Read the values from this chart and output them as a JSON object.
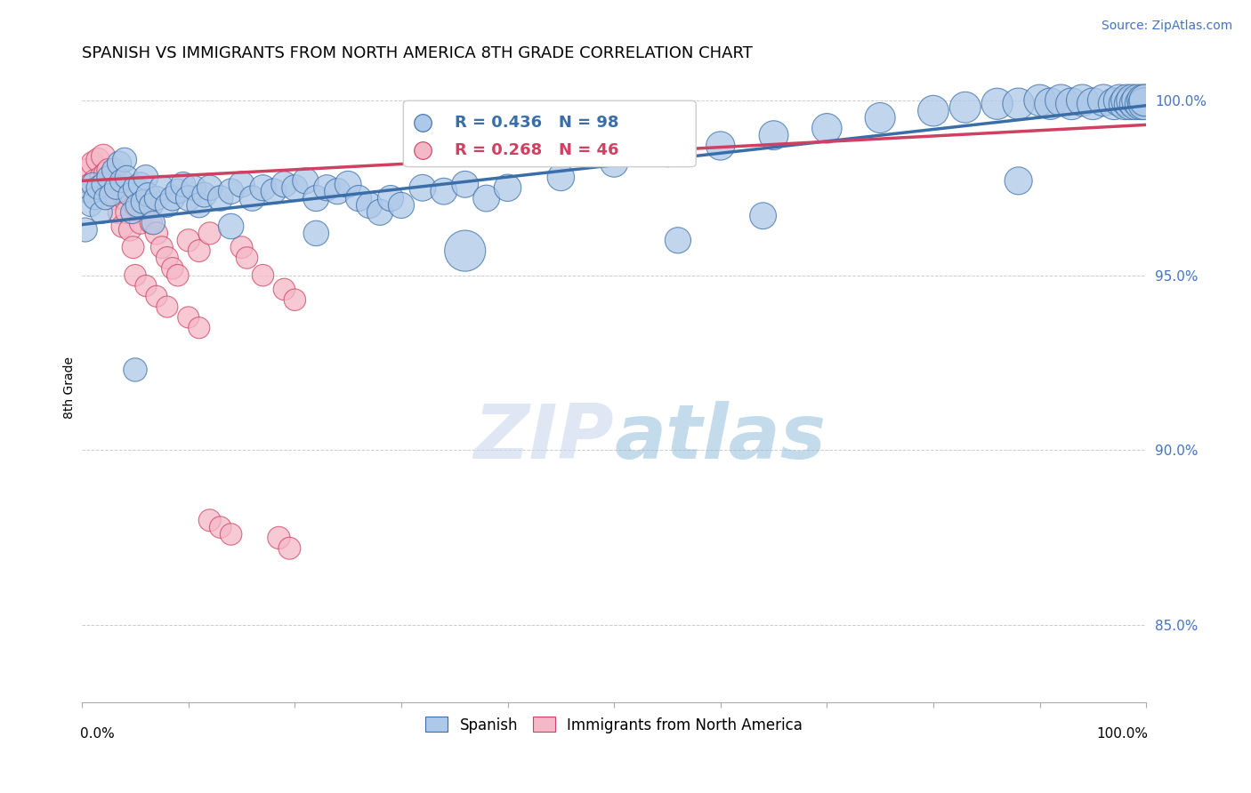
{
  "title": "SPANISH VS IMMIGRANTS FROM NORTH AMERICA 8TH GRADE CORRELATION CHART",
  "source": "Source: ZipAtlas.com",
  "ylabel": "8th Grade",
  "ylabel_ticks": [
    "85.0%",
    "90.0%",
    "95.0%",
    "100.0%"
  ],
  "ylabel_tick_vals": [
    0.85,
    0.9,
    0.95,
    1.0
  ],
  "xlim": [
    0.0,
    1.0
  ],
  "ylim": [
    0.828,
    1.008
  ],
  "blue_R": 0.436,
  "blue_N": 98,
  "pink_R": 0.268,
  "pink_N": 46,
  "blue_color": "#adc8e8",
  "blue_line_color": "#3a6ea8",
  "pink_color": "#f5b8c8",
  "pink_line_color": "#d04060",
  "legend_label_blue": "Spanish",
  "legend_label_pink": "Immigrants from North America",
  "watermark_zip": "ZIP",
  "watermark_atlas": "atlas",
  "blue_scatter_x": [
    0.005,
    0.008,
    0.01,
    0.012,
    0.015,
    0.018,
    0.02,
    0.022,
    0.025,
    0.027,
    0.03,
    0.032,
    0.035,
    0.037,
    0.04,
    0.042,
    0.045,
    0.047,
    0.05,
    0.052,
    0.055,
    0.057,
    0.06,
    0.062,
    0.065,
    0.067,
    0.07,
    0.075,
    0.08,
    0.085,
    0.09,
    0.095,
    0.1,
    0.105,
    0.11,
    0.115,
    0.12,
    0.13,
    0.14,
    0.15,
    0.16,
    0.17,
    0.18,
    0.19,
    0.2,
    0.21,
    0.22,
    0.23,
    0.24,
    0.25,
    0.26,
    0.27,
    0.28,
    0.29,
    0.3,
    0.32,
    0.34,
    0.36,
    0.38,
    0.4,
    0.45,
    0.5,
    0.55,
    0.6,
    0.65,
    0.7,
    0.75,
    0.8,
    0.83,
    0.86,
    0.88,
    0.9,
    0.91,
    0.92,
    0.93,
    0.94,
    0.95,
    0.96,
    0.97,
    0.975,
    0.98,
    0.982,
    0.985,
    0.987,
    0.99,
    0.992,
    0.995,
    0.997,
    0.998,
    0.999,
    0.003,
    0.05,
    0.14,
    0.22,
    0.36,
    0.56,
    0.64,
    0.88
  ],
  "blue_scatter_y": [
    0.974,
    0.97,
    0.976,
    0.972,
    0.975,
    0.968,
    0.976,
    0.972,
    0.978,
    0.973,
    0.98,
    0.975,
    0.982,
    0.977,
    0.983,
    0.978,
    0.973,
    0.968,
    0.975,
    0.97,
    0.976,
    0.971,
    0.978,
    0.973,
    0.97,
    0.965,
    0.972,
    0.975,
    0.97,
    0.972,
    0.974,
    0.976,
    0.972,
    0.975,
    0.97,
    0.973,
    0.975,
    0.972,
    0.974,
    0.976,
    0.972,
    0.975,
    0.974,
    0.976,
    0.975,
    0.977,
    0.972,
    0.975,
    0.974,
    0.976,
    0.972,
    0.97,
    0.968,
    0.972,
    0.97,
    0.975,
    0.974,
    0.976,
    0.972,
    0.975,
    0.978,
    0.982,
    0.985,
    0.987,
    0.99,
    0.992,
    0.995,
    0.997,
    0.998,
    0.999,
    0.999,
    1.0,
    0.999,
    1.0,
    0.999,
    1.0,
    0.999,
    1.0,
    0.999,
    1.0,
    0.999,
    1.0,
    0.999,
    1.0,
    0.999,
    1.0,
    0.999,
    1.0,
    0.999,
    1.0,
    0.963,
    0.923,
    0.964,
    0.962,
    0.957,
    0.96,
    0.967,
    0.977
  ],
  "blue_scatter_sizes": [
    35,
    33,
    35,
    33,
    35,
    33,
    36,
    34,
    36,
    34,
    38,
    35,
    38,
    35,
    38,
    36,
    36,
    34,
    38,
    36,
    38,
    36,
    40,
    38,
    38,
    36,
    38,
    40,
    38,
    40,
    40,
    40,
    42,
    40,
    40,
    40,
    42,
    42,
    42,
    44,
    42,
    44,
    42,
    44,
    44,
    44,
    44,
    44,
    44,
    46,
    44,
    44,
    44,
    44,
    44,
    46,
    46,
    46,
    46,
    48,
    48,
    50,
    52,
    54,
    56,
    58,
    60,
    62,
    63,
    64,
    65,
    65,
    65,
    66,
    66,
    66,
    66,
    66,
    66,
    66,
    66,
    66,
    66,
    66,
    66,
    66,
    66,
    66,
    66,
    66,
    38,
    36,
    42,
    42,
    110,
    44,
    46,
    50
  ],
  "pink_scatter_x": [
    0.005,
    0.008,
    0.01,
    0.012,
    0.015,
    0.018,
    0.02,
    0.022,
    0.025,
    0.027,
    0.03,
    0.032,
    0.035,
    0.038,
    0.04,
    0.042,
    0.045,
    0.048,
    0.05,
    0.055,
    0.06,
    0.065,
    0.07,
    0.075,
    0.08,
    0.085,
    0.09,
    0.1,
    0.11,
    0.12,
    0.05,
    0.06,
    0.07,
    0.08,
    0.1,
    0.11,
    0.15,
    0.155,
    0.17,
    0.19,
    0.2,
    0.185,
    0.195,
    0.12,
    0.13,
    0.14
  ],
  "pink_scatter_y": [
    0.98,
    0.976,
    0.982,
    0.977,
    0.983,
    0.978,
    0.984,
    0.979,
    0.98,
    0.975,
    0.976,
    0.972,
    0.968,
    0.964,
    0.972,
    0.968,
    0.963,
    0.958,
    0.97,
    0.965,
    0.97,
    0.965,
    0.962,
    0.958,
    0.955,
    0.952,
    0.95,
    0.96,
    0.957,
    0.962,
    0.95,
    0.947,
    0.944,
    0.941,
    0.938,
    0.935,
    0.958,
    0.955,
    0.95,
    0.946,
    0.943,
    0.875,
    0.872,
    0.88,
    0.878,
    0.876
  ],
  "pink_scatter_sizes": [
    36,
    34,
    36,
    34,
    36,
    34,
    38,
    35,
    36,
    34,
    36,
    34,
    34,
    33,
    35,
    33,
    33,
    32,
    35,
    33,
    34,
    33,
    33,
    32,
    32,
    31,
    31,
    33,
    32,
    33,
    31,
    30,
    30,
    30,
    30,
    30,
    32,
    31,
    31,
    31,
    31,
    33,
    32,
    32,
    31,
    31
  ],
  "blue_trendline_x": [
    0.0,
    1.0
  ],
  "blue_trendline_y": [
    0.9645,
    0.9985
  ],
  "pink_trendline_x": [
    0.0,
    1.0
  ],
  "pink_trendline_y": [
    0.977,
    0.993
  ]
}
